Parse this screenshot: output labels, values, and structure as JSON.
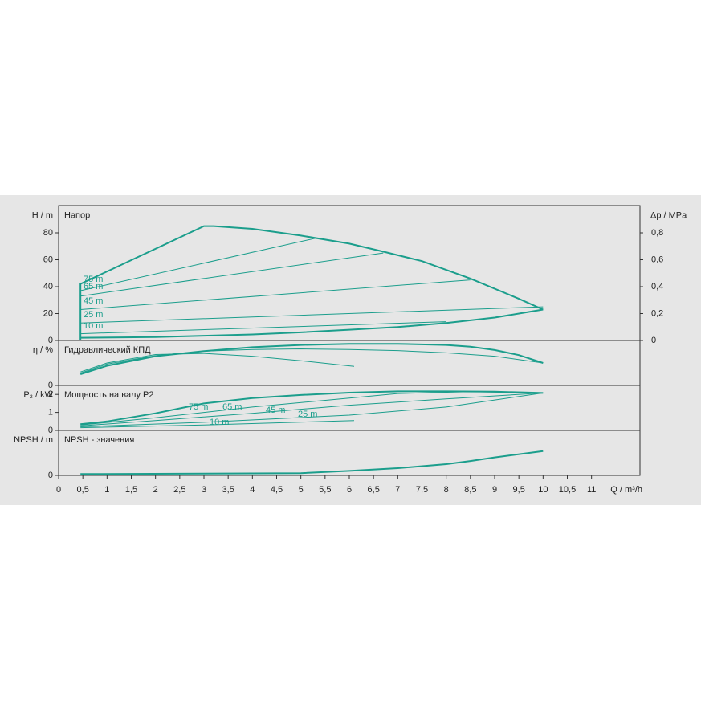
{
  "chart_data": [
    {
      "type": "line",
      "title": "Напор",
      "y_label": "H / m",
      "y2_label": "Δp / MPa",
      "ylim": [
        0,
        100
      ],
      "yticks": [
        0,
        20,
        40,
        60,
        80
      ],
      "y2lim": [
        0,
        1
      ],
      "y2ticks": [
        0,
        {
          "value": 0.2,
          "label": "0,2"
        },
        {
          "value": 0.4,
          "label": "0,4"
        },
        {
          "value": 0.6,
          "label": "0,6"
        },
        {
          "value": 0.8,
          "label": "0,8"
        }
      ],
      "annotations": [
        "75 m",
        "65 m",
        "45 m",
        "25 m",
        "10 m"
      ],
      "series": [
        {
          "color": "#1b9e8c",
          "x": [
            0.45,
            0.45,
            3,
            3.2,
            4,
            5,
            6,
            6.7,
            7.5,
            8.5,
            9.5,
            10
          ],
          "values": [
            0,
            42,
            85,
            85,
            83,
            78,
            72,
            66,
            59,
            46,
            31,
            23
          ]
        },
        {
          "color": "#1b9e8c",
          "x": [
            0.45,
            2,
            3,
            4,
            5,
            6,
            7,
            8,
            9,
            10
          ],
          "values": [
            2,
            2.5,
            3.5,
            4.5,
            6,
            8,
            10,
            13,
            17,
            23
          ]
        },
        {
          "color": "#1b9e8c",
          "x": [
            0.45,
            5.3
          ],
          "values": [
            37,
            76
          ]
        },
        {
          "color": "#1b9e8c",
          "x": [
            0.45,
            6.7
          ],
          "values": [
            33,
            65
          ]
        },
        {
          "color": "#1b9e8c",
          "x": [
            0.45,
            8.5
          ],
          "values": [
            23,
            45
          ]
        },
        {
          "color": "#1b9e8c",
          "x": [
            0.45,
            10
          ],
          "values": [
            13,
            25
          ]
        },
        {
          "color": "#1b9e8c",
          "x": [
            0.45,
            8
          ],
          "values": [
            5,
            14
          ]
        }
      ]
    },
    {
      "type": "line",
      "title": "Гидравлический КПД",
      "y_label": "η / %",
      "ylim": [
        0,
        80
      ],
      "yticks": [
        0
      ],
      "series": [
        {
          "color": "#1b9e8c",
          "x": [
            0.45,
            1,
            2,
            3,
            4,
            5,
            6,
            7,
            8,
            8.5,
            9,
            9.5,
            10
          ],
          "values": [
            20,
            35,
            52,
            61,
            68,
            72,
            74,
            74,
            72,
            69,
            63,
            54,
            40
          ]
        },
        {
          "color": "#1b9e8c",
          "x": [
            0.45,
            1,
            2,
            3,
            4,
            5,
            6,
            7,
            8,
            9,
            10
          ],
          "values": [
            22,
            38,
            53,
            61,
            64,
            65,
            64,
            62,
            58,
            52,
            40
          ]
        },
        {
          "color": "#1b9e8c",
          "x": [
            0.45,
            1,
            2,
            3,
            4,
            5,
            6.1
          ],
          "values": [
            24,
            40,
            55,
            57,
            52,
            44,
            34
          ]
        }
      ]
    },
    {
      "type": "line",
      "title": "Мощность на валу P2",
      "y_label": "P₂ / kW",
      "ylim": [
        0,
        2.5
      ],
      "yticks": [
        0,
        1,
        2
      ],
      "annotations": [
        "75 m",
        "65 m",
        "45 m",
        "25 m",
        "10 m"
      ],
      "series": [
        {
          "color": "#1b9e8c",
          "x": [
            0.45,
            1,
            2,
            3,
            4,
            5,
            6,
            7,
            8,
            9,
            10
          ],
          "values": [
            0.35,
            0.5,
            0.95,
            1.5,
            1.8,
            1.97,
            2.1,
            2.17,
            2.17,
            2.15,
            2.08
          ]
        },
        {
          "color": "#1b9e8c",
          "x": [
            0.45,
            2,
            4,
            6,
            7,
            8.5,
            10
          ],
          "values": [
            0.3,
            0.7,
            1.3,
            1.8,
            2.05,
            2.15,
            2.08
          ]
        },
        {
          "color": "#1b9e8c",
          "x": [
            0.45,
            2,
            4,
            6,
            8,
            10
          ],
          "values": [
            0.25,
            0.55,
            0.95,
            1.4,
            1.75,
            2.08
          ]
        },
        {
          "color": "#1b9e8c",
          "x": [
            0.45,
            3,
            6,
            8,
            10
          ],
          "values": [
            0.2,
            0.45,
            0.85,
            1.3,
            2.08
          ]
        },
        {
          "color": "#1b9e8c",
          "x": [
            0.45,
            3,
            6.1
          ],
          "values": [
            0.15,
            0.3,
            0.55
          ]
        }
      ]
    },
    {
      "type": "line",
      "title": "NPSH - значения",
      "y_label": "NPSH / m",
      "ylim": [
        0,
        10
      ],
      "yticks": [
        0
      ],
      "x_label": "Q / m³/h",
      "xlim": [
        0,
        12
      ],
      "xticks": [
        0,
        {
          "value": 0.5,
          "label": "0,5"
        },
        1,
        {
          "value": 1.5,
          "label": "1,5"
        },
        2,
        {
          "value": 2.5,
          "label": "2,5"
        },
        3,
        {
          "value": 3.5,
          "label": "3,5"
        },
        4,
        {
          "value": 4.5,
          "label": "4,5"
        },
        5,
        {
          "value": 5.5,
          "label": "5,5"
        },
        6,
        {
          "value": 6.5,
          "label": "6,5"
        },
        7,
        {
          "value": 7.5,
          "label": "7,5"
        },
        8,
        {
          "value": 8.5,
          "label": "8,5"
        },
        9,
        {
          "value": 9.5,
          "label": "9,5"
        },
        10,
        {
          "value": 10.5,
          "label": "10,5"
        },
        11
      ],
      "series": [
        {
          "color": "#1b9e8c",
          "x": [
            0.45,
            3,
            5,
            6,
            7,
            8,
            8.5,
            9,
            10
          ],
          "values": [
            0.3,
            0.4,
            0.5,
            1,
            1.6,
            2.5,
            3.2,
            4,
            5.4
          ]
        }
      ]
    }
  ]
}
